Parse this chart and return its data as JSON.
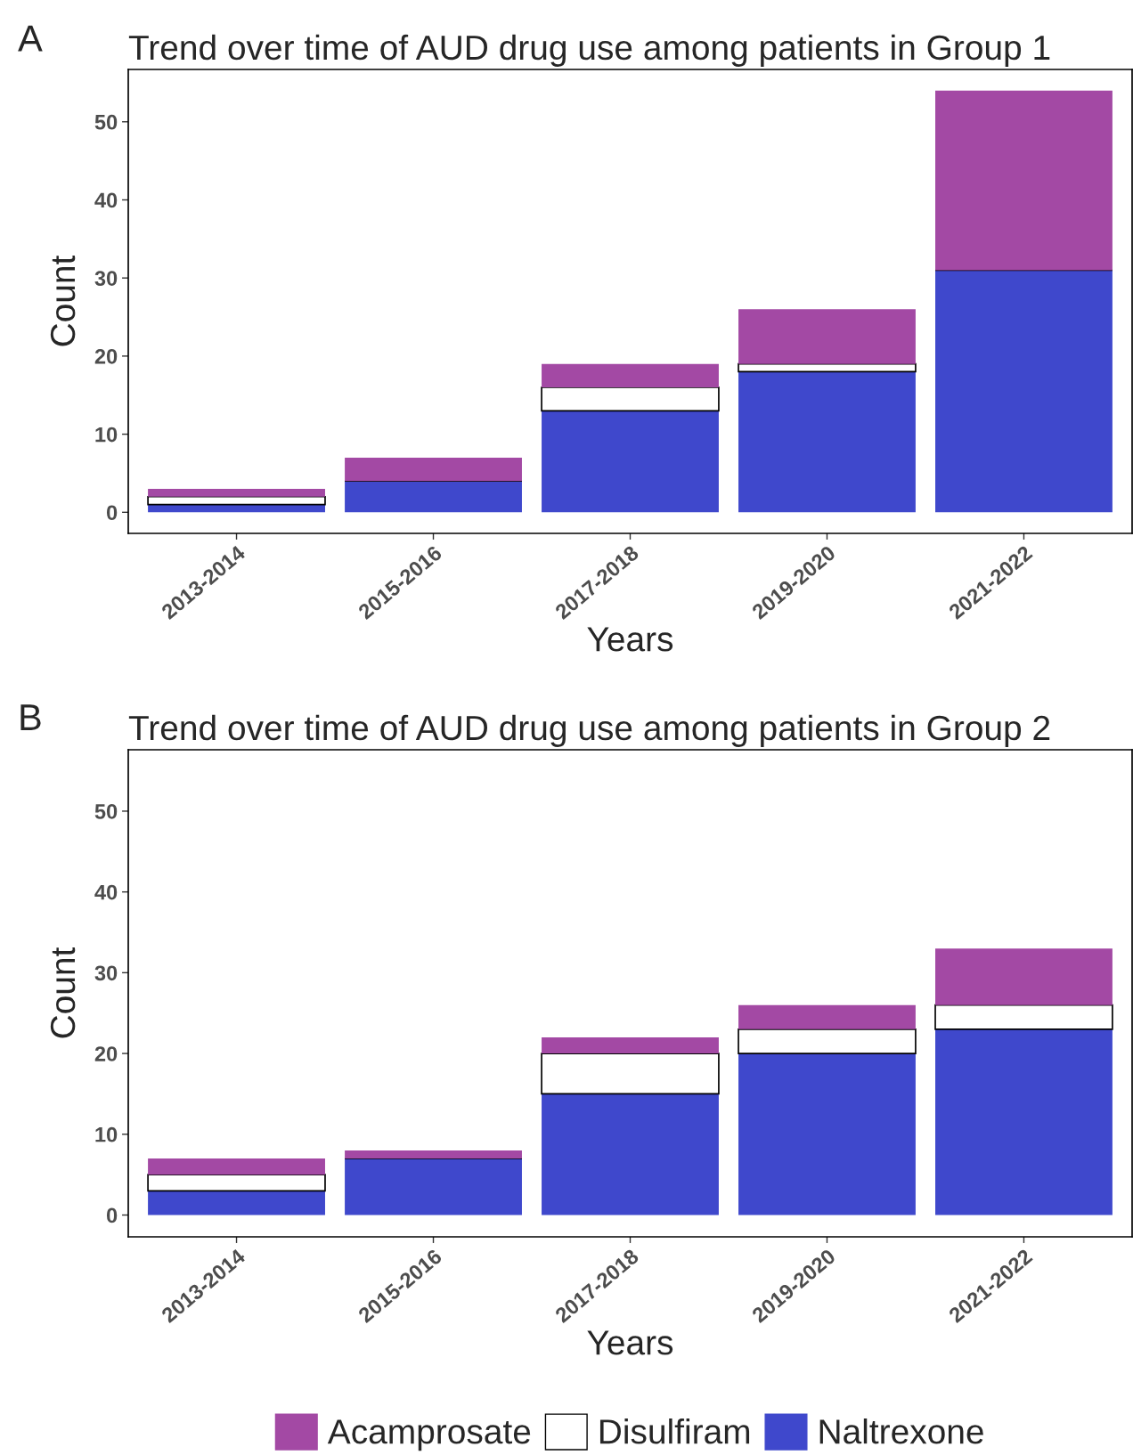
{
  "chart_data": [
    {
      "type": "bar",
      "title": "Trend over time of AUD drug use among patients in Group 1",
      "xlabel": "Years",
      "ylabel": "Count",
      "annotations": [
        "A"
      ],
      "categories": [
        "2013-2014",
        "2015-2016",
        "2017-2018",
        "2019-2020",
        "2021-2022"
      ],
      "stacked": true,
      "series": [
        {
          "color": "#3f48cc",
          "values": [
            1,
            4,
            13,
            18,
            31
          ]
        },
        {
          "color": "#ffffff",
          "values": [
            1,
            0,
            3,
            1,
            0
          ]
        },
        {
          "color": "#a349a4",
          "values": [
            1,
            3,
            3,
            7,
            23
          ]
        }
      ],
      "ylim": [
        -2.7,
        56.7
      ],
      "yticks": [
        0,
        10,
        20,
        30,
        40,
        50
      ],
      "grid": false
    },
    {
      "type": "bar",
      "title": "Trend over time of AUD drug use among patients in Group 2",
      "xlabel": "Years",
      "ylabel": "Count",
      "annotations": [
        "B"
      ],
      "categories": [
        "2013-2014",
        "2015-2016",
        "2017-2018",
        "2019-2020",
        "2021-2022"
      ],
      "stacked": true,
      "series": [
        {
          "name": "Naltrexone",
          "color": "#3f48cc",
          "values": [
            3,
            7,
            15,
            20,
            23
          ]
        },
        {
          "name": "Disulfiram",
          "color": "#ffffff",
          "values": [
            2,
            0,
            5,
            3,
            3
          ]
        },
        {
          "name": "Acamprosate",
          "color": "#a349a4",
          "values": [
            2,
            1,
            2,
            3,
            7
          ]
        }
      ],
      "ylim": [
        -2.7,
        57.6
      ],
      "yticks": [
        0,
        10,
        20,
        30,
        40,
        50
      ],
      "grid": false,
      "legend": "bottom"
    }
  ]
}
